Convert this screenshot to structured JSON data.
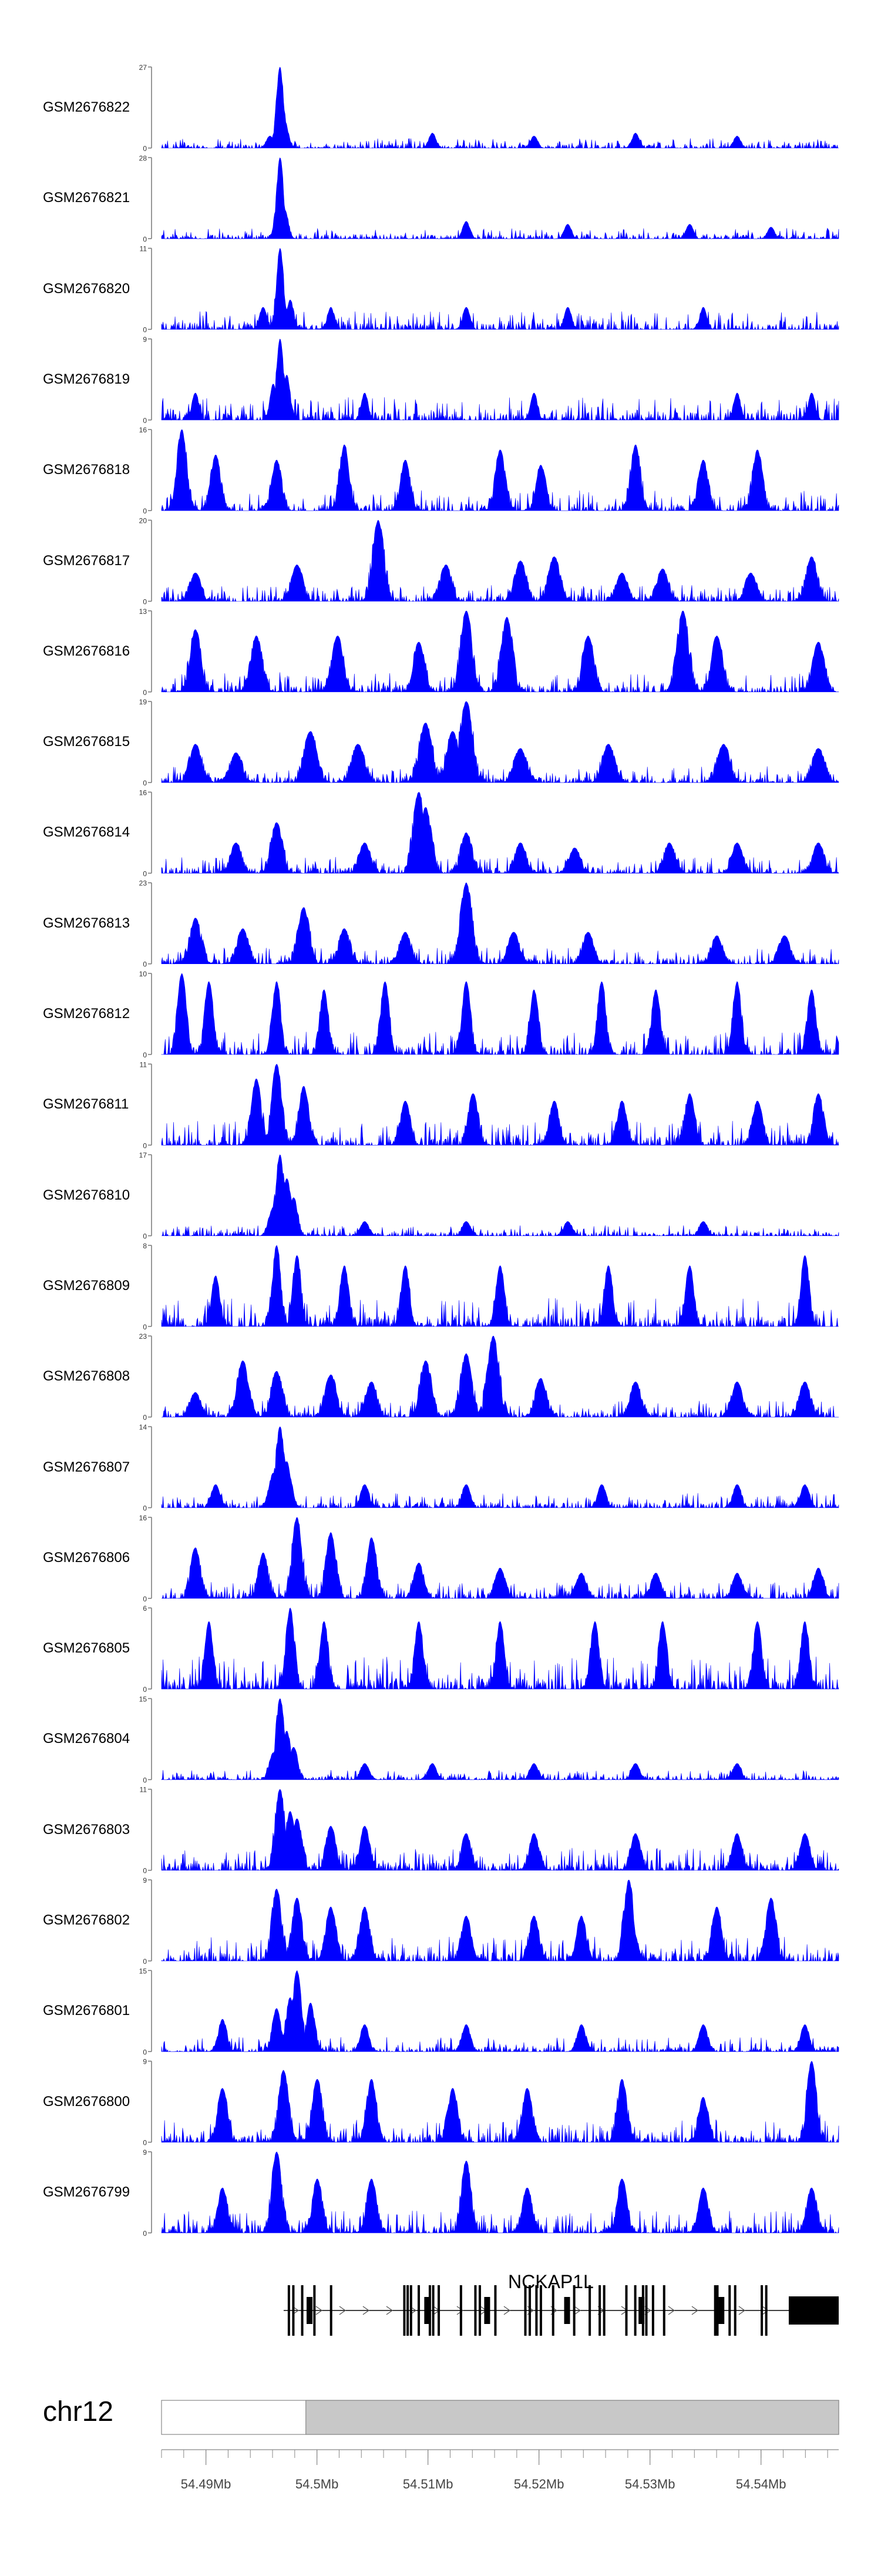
{
  "chart_data": {
    "type": "area",
    "chromosome": "chr12",
    "gene": "NCKAP1L",
    "xlim": [
      54486000,
      54547000
    ],
    "x_ticks": [
      {
        "pos": 54490000,
        "label": "54.49Mb"
      },
      {
        "pos": 54500000,
        "label": "54.5Mb"
      },
      {
        "pos": 54510000,
        "label": "54.51Mb"
      },
      {
        "pos": 54520000,
        "label": "54.52Mb"
      },
      {
        "pos": 54530000,
        "label": "54.53Mb"
      },
      {
        "pos": 54540000,
        "label": "54.54Mb"
      }
    ],
    "color": "#0000ff",
    "highlight_region": [
      54499000,
      54547000
    ],
    "tracks": [
      {
        "name": "GSM2676822",
        "ymax": 27,
        "peaks": [
          [
            0.175,
            27
          ],
          [
            0.182,
            9
          ],
          [
            0.17,
            7
          ],
          [
            0.16,
            4
          ],
          [
            0.4,
            5
          ],
          [
            0.55,
            4
          ],
          [
            0.7,
            5
          ],
          [
            0.85,
            4
          ]
        ],
        "base": 0.12,
        "spread": 0.002
      },
      {
        "name": "GSM2676821",
        "ymax": 28,
        "peaks": [
          [
            0.175,
            28
          ],
          [
            0.182,
            10
          ],
          [
            0.17,
            6
          ],
          [
            0.45,
            6
          ],
          [
            0.6,
            5
          ],
          [
            0.78,
            5
          ],
          [
            0.9,
            4
          ]
        ],
        "base": 0.13,
        "spread": 0.002
      },
      {
        "name": "GSM2676820",
        "ymax": 11,
        "peaks": [
          [
            0.175,
            11
          ],
          [
            0.19,
            4
          ],
          [
            0.15,
            3
          ],
          [
            0.25,
            3
          ],
          [
            0.45,
            3
          ],
          [
            0.6,
            3
          ],
          [
            0.8,
            3
          ]
        ],
        "base": 0.22,
        "spread": 0.002
      },
      {
        "name": "GSM2676819",
        "ymax": 9,
        "peaks": [
          [
            0.175,
            9
          ],
          [
            0.185,
            5
          ],
          [
            0.165,
            4
          ],
          [
            0.05,
            3
          ],
          [
            0.3,
            3
          ],
          [
            0.55,
            3
          ],
          [
            0.85,
            3
          ],
          [
            0.96,
            3
          ]
        ],
        "base": 0.28,
        "spread": 0.002
      },
      {
        "name": "GSM2676818",
        "ymax": 16,
        "peaks": [
          [
            0.03,
            16
          ],
          [
            0.08,
            11
          ],
          [
            0.17,
            10
          ],
          [
            0.27,
            13
          ],
          [
            0.36,
            10
          ],
          [
            0.5,
            12
          ],
          [
            0.56,
            9
          ],
          [
            0.7,
            13
          ],
          [
            0.8,
            10
          ],
          [
            0.88,
            12
          ]
        ],
        "base": 0.25,
        "spread": 0.004
      },
      {
        "name": "GSM2676817",
        "ymax": 20,
        "peaks": [
          [
            0.32,
            20
          ],
          [
            0.2,
            9
          ],
          [
            0.05,
            7
          ],
          [
            0.42,
            9
          ],
          [
            0.53,
            10
          ],
          [
            0.58,
            11
          ],
          [
            0.68,
            7
          ],
          [
            0.74,
            8
          ],
          [
            0.87,
            7
          ],
          [
            0.96,
            11
          ]
        ],
        "base": 0.2,
        "spread": 0.005
      },
      {
        "name": "GSM2676816",
        "ymax": 13,
        "peaks": [
          [
            0.45,
            13
          ],
          [
            0.51,
            12
          ],
          [
            0.77,
            13
          ],
          [
            0.05,
            10
          ],
          [
            0.14,
            9
          ],
          [
            0.26,
            9
          ],
          [
            0.38,
            8
          ],
          [
            0.63,
            9
          ],
          [
            0.82,
            9
          ],
          [
            0.97,
            8
          ]
        ],
        "base": 0.25,
        "spread": 0.005
      },
      {
        "name": "GSM2676815",
        "ymax": 19,
        "peaks": [
          [
            0.45,
            19
          ],
          [
            0.39,
            14
          ],
          [
            0.43,
            12
          ],
          [
            0.22,
            12
          ],
          [
            0.05,
            9
          ],
          [
            0.11,
            7
          ],
          [
            0.29,
            9
          ],
          [
            0.53,
            8
          ],
          [
            0.66,
            9
          ],
          [
            0.83,
            9
          ],
          [
            0.97,
            8
          ]
        ],
        "base": 0.2,
        "spread": 0.006
      },
      {
        "name": "GSM2676814",
        "ymax": 16,
        "peaks": [
          [
            0.38,
            16
          ],
          [
            0.39,
            13
          ],
          [
            0.17,
            10
          ],
          [
            0.11,
            6
          ],
          [
            0.3,
            6
          ],
          [
            0.45,
            8
          ],
          [
            0.53,
            6
          ],
          [
            0.61,
            5
          ],
          [
            0.75,
            6
          ],
          [
            0.85,
            6
          ],
          [
            0.97,
            6
          ]
        ],
        "base": 0.2,
        "spread": 0.005
      },
      {
        "name": "GSM2676813",
        "ymax": 23,
        "peaks": [
          [
            0.45,
            23
          ],
          [
            0.21,
            16
          ],
          [
            0.12,
            10
          ],
          [
            0.27,
            10
          ],
          [
            0.36,
            9
          ],
          [
            0.52,
            9
          ],
          [
            0.63,
            9
          ],
          [
            0.82,
            8
          ],
          [
            0.92,
            8
          ],
          [
            0.05,
            13
          ]
        ],
        "base": 0.2,
        "spread": 0.005
      },
      {
        "name": "GSM2676812",
        "ymax": 10,
        "peaks": [
          [
            0.03,
            10
          ],
          [
            0.07,
            9
          ],
          [
            0.17,
            9
          ],
          [
            0.24,
            8
          ],
          [
            0.33,
            9
          ],
          [
            0.45,
            9
          ],
          [
            0.55,
            8
          ],
          [
            0.65,
            9
          ],
          [
            0.73,
            8
          ],
          [
            0.85,
            9
          ],
          [
            0.96,
            8
          ]
        ],
        "base": 0.28,
        "spread": 0.003
      },
      {
        "name": "GSM2676811",
        "ymax": 11,
        "peaks": [
          [
            0.17,
            11
          ],
          [
            0.14,
            9
          ],
          [
            0.21,
            8
          ],
          [
            0.36,
            6
          ],
          [
            0.46,
            7
          ],
          [
            0.58,
            6
          ],
          [
            0.68,
            6
          ],
          [
            0.78,
            7
          ],
          [
            0.88,
            6
          ],
          [
            0.97,
            7
          ]
        ],
        "base": 0.3,
        "spread": 0.004
      },
      {
        "name": "GSM2676810",
        "ymax": 17,
        "peaks": [
          [
            0.175,
            17
          ],
          [
            0.185,
            12
          ],
          [
            0.195,
            8
          ],
          [
            0.165,
            6
          ],
          [
            0.3,
            3
          ],
          [
            0.45,
            3
          ],
          [
            0.6,
            3
          ],
          [
            0.8,
            3
          ]
        ],
        "base": 0.13,
        "spread": 0.003
      },
      {
        "name": "GSM2676809",
        "ymax": 8,
        "peaks": [
          [
            0.17,
            8
          ],
          [
            0.2,
            7
          ],
          [
            0.27,
            6
          ],
          [
            0.36,
            6
          ],
          [
            0.5,
            6
          ],
          [
            0.66,
            6
          ],
          [
            0.78,
            6
          ],
          [
            0.95,
            7
          ],
          [
            0.08,
            5
          ]
        ],
        "base": 0.35,
        "spread": 0.003
      },
      {
        "name": "GSM2676808",
        "ymax": 23,
        "peaks": [
          [
            0.49,
            23
          ],
          [
            0.45,
            18
          ],
          [
            0.39,
            16
          ],
          [
            0.12,
            16
          ],
          [
            0.17,
            13
          ],
          [
            0.25,
            12
          ],
          [
            0.31,
            10
          ],
          [
            0.56,
            11
          ],
          [
            0.7,
            10
          ],
          [
            0.85,
            10
          ],
          [
            0.95,
            10
          ],
          [
            0.05,
            7
          ]
        ],
        "base": 0.2,
        "spread": 0.005
      },
      {
        "name": "GSM2676807",
        "ymax": 14,
        "peaks": [
          [
            0.175,
            14
          ],
          [
            0.185,
            8
          ],
          [
            0.165,
            6
          ],
          [
            0.08,
            4
          ],
          [
            0.3,
            4
          ],
          [
            0.45,
            4
          ],
          [
            0.65,
            4
          ],
          [
            0.85,
            4
          ],
          [
            0.95,
            4
          ]
        ],
        "base": 0.18,
        "spread": 0.003
      },
      {
        "name": "GSM2676806",
        "ymax": 16,
        "peaks": [
          [
            0.2,
            16
          ],
          [
            0.25,
            13
          ],
          [
            0.31,
            12
          ],
          [
            0.05,
            10
          ],
          [
            0.15,
            9
          ],
          [
            0.38,
            7
          ],
          [
            0.5,
            6
          ],
          [
            0.62,
            5
          ],
          [
            0.73,
            5
          ],
          [
            0.85,
            5
          ],
          [
            0.97,
            6
          ]
        ],
        "base": 0.2,
        "spread": 0.004
      },
      {
        "name": "GSM2676805",
        "ymax": 6,
        "peaks": [
          [
            0.19,
            6
          ],
          [
            0.07,
            5
          ],
          [
            0.24,
            5
          ],
          [
            0.38,
            5
          ],
          [
            0.5,
            5
          ],
          [
            0.64,
            5
          ],
          [
            0.74,
            5
          ],
          [
            0.88,
            5
          ],
          [
            0.95,
            5
          ]
        ],
        "base": 0.4,
        "spread": 0.003
      },
      {
        "name": "GSM2676804",
        "ymax": 15,
        "peaks": [
          [
            0.175,
            15
          ],
          [
            0.185,
            9
          ],
          [
            0.195,
            6
          ],
          [
            0.165,
            5
          ],
          [
            0.3,
            3
          ],
          [
            0.4,
            3
          ],
          [
            0.55,
            3
          ],
          [
            0.7,
            3
          ],
          [
            0.85,
            3
          ]
        ],
        "base": 0.12,
        "spread": 0.003
      },
      {
        "name": "GSM2676803",
        "ymax": 11,
        "peaks": [
          [
            0.175,
            11
          ],
          [
            0.19,
            8
          ],
          [
            0.2,
            7
          ],
          [
            0.25,
            6
          ],
          [
            0.3,
            6
          ],
          [
            0.45,
            5
          ],
          [
            0.55,
            5
          ],
          [
            0.7,
            5
          ],
          [
            0.85,
            5
          ],
          [
            0.95,
            5
          ]
        ],
        "base": 0.28,
        "spread": 0.004
      },
      {
        "name": "GSM2676802",
        "ymax": 9,
        "peaks": [
          [
            0.69,
            9
          ],
          [
            0.17,
            8
          ],
          [
            0.2,
            7
          ],
          [
            0.25,
            6
          ],
          [
            0.3,
            6
          ],
          [
            0.45,
            5
          ],
          [
            0.55,
            5
          ],
          [
            0.62,
            5
          ],
          [
            0.82,
            6
          ],
          [
            0.9,
            7
          ]
        ],
        "base": 0.3,
        "spread": 0.004
      },
      {
        "name": "GSM2676801",
        "ymax": 15,
        "peaks": [
          [
            0.2,
            15
          ],
          [
            0.19,
            10
          ],
          [
            0.22,
            9
          ],
          [
            0.17,
            8
          ],
          [
            0.09,
            6
          ],
          [
            0.3,
            5
          ],
          [
            0.45,
            5
          ],
          [
            0.62,
            5
          ],
          [
            0.8,
            5
          ],
          [
            0.95,
            5
          ]
        ],
        "base": 0.18,
        "spread": 0.003
      },
      {
        "name": "GSM2676800",
        "ymax": 9,
        "peaks": [
          [
            0.96,
            9
          ],
          [
            0.18,
            8
          ],
          [
            0.23,
            7
          ],
          [
            0.31,
            7
          ],
          [
            0.09,
            6
          ],
          [
            0.43,
            6
          ],
          [
            0.54,
            6
          ],
          [
            0.68,
            7
          ],
          [
            0.8,
            5
          ]
        ],
        "base": 0.28,
        "spread": 0.004
      },
      {
        "name": "GSM2676799",
        "ymax": 9,
        "peaks": [
          [
            0.17,
            9
          ],
          [
            0.45,
            8
          ],
          [
            0.23,
            6
          ],
          [
            0.31,
            6
          ],
          [
            0.09,
            5
          ],
          [
            0.54,
            5
          ],
          [
            0.68,
            6
          ],
          [
            0.8,
            5
          ],
          [
            0.96,
            5
          ]
        ],
        "base": 0.28,
        "spread": 0.004
      }
    ],
    "gene_model": {
      "strand": "+",
      "start": 54497000,
      "end": 54547000,
      "utr_end_block": [
        54542500,
        54547000
      ],
      "exons": [
        54497500,
        54497900,
        54498700,
        54499200,
        54499800,
        54501300,
        54507900,
        54508200,
        54508500,
        54509200,
        54509800,
        54510200,
        54510500,
        54511000,
        54513000,
        54514300,
        54514700,
        54515200,
        54516100,
        54518800,
        54519200,
        54519800,
        54520200,
        54521300,
        54522400,
        54523200,
        54524600,
        54525500,
        54525900,
        54527900,
        54528700,
        54529100,
        54529400,
        54529700,
        54530300,
        54531300,
        54535900,
        54536100,
        54536300,
        54537200,
        54537700,
        54540100,
        54540500
      ]
    }
  }
}
